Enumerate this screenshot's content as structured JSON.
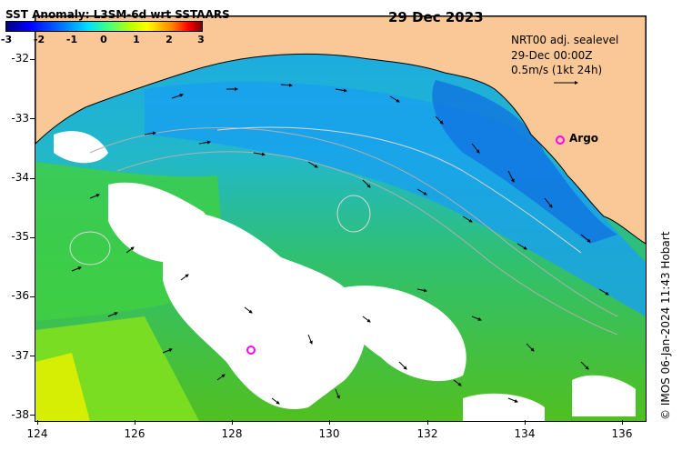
{
  "title": "SST Anomaly: L3SM-6d wrt SSTAARS",
  "colorbar": {
    "ticks": [
      "-3",
      "-2",
      "-1",
      "0",
      "1",
      "2",
      "3"
    ],
    "range": [
      -3,
      3
    ]
  },
  "date": "29 Dec 2023",
  "info": {
    "line1": "NRT00 adj. sealevel",
    "line2": "29-Dec 00:00Z",
    "line3": "0.5m/s (1kt 24h)"
  },
  "argo": {
    "label": "Argo",
    "marker_color": "#ff00ff"
  },
  "credit": "© IMOS 06-Jan-2024 11:43 Hobart",
  "axes": {
    "x_ticks": [
      "124",
      "126",
      "128",
      "130",
      "132",
      "134",
      "136"
    ],
    "y_ticks": [
      "-32",
      "-33",
      "-34",
      "-35",
      "-36",
      "-37",
      "-38"
    ],
    "x_range": [
      124,
      136.5
    ],
    "y_range": [
      -38.1,
      -31.3
    ]
  },
  "colors": {
    "land": "#f9c896",
    "cloud": "#ffffff",
    "anomaly_negative": "#0050ff",
    "anomaly_zero": "#20c0c0",
    "anomaly_positive": "#60e000",
    "contour": "#b0b0b0"
  }
}
